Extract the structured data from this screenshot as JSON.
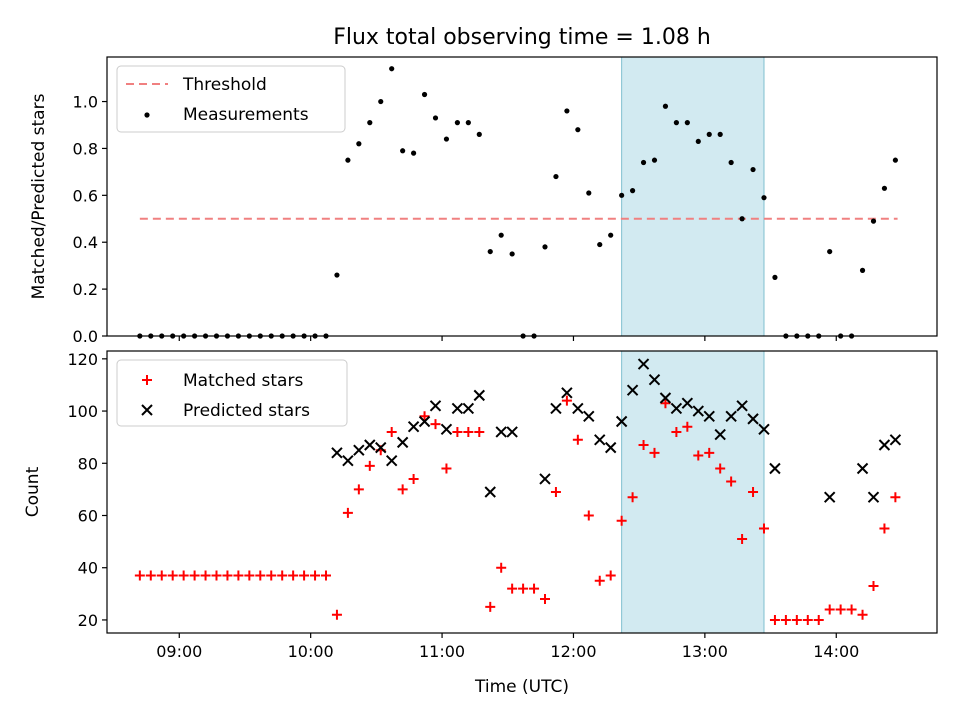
{
  "title": "Flux total observing time = 1.08 h",
  "colors": {
    "threshold": "#f08080",
    "measurements": "#000000",
    "matched": "#ff0000",
    "predicted": "#000000",
    "span_fill": "#add8e6"
  },
  "chart_data": [
    {
      "type": "scatter",
      "ylabel": "Matched/Predicted stars",
      "ylim": [
        0,
        1.19
      ],
      "yticks": [
        0.0,
        0.2,
        0.4,
        0.6,
        0.8,
        1.0
      ],
      "ytick_labels": [
        "0.0",
        "0.2",
        "0.4",
        "0.6",
        "0.8",
        "1.0"
      ],
      "legend_position": "upper-left",
      "legend": [
        "Threshold",
        "Measurements"
      ],
      "highlight_span": {
        "x": [
          "12:22",
          "13:27"
        ]
      },
      "threshold": {
        "name": "Threshold",
        "y": 0.5,
        "x": [
          "08:42",
          "14:28"
        ],
        "style": "dashed"
      },
      "series": [
        {
          "name": "Measurements",
          "marker": "dot",
          "points": [
            [
              "08:42",
              0.0
            ],
            [
              "08:47",
              0.0
            ],
            [
              "08:52",
              0.0
            ],
            [
              "08:57",
              0.0
            ],
            [
              "09:02",
              0.0
            ],
            [
              "09:07",
              0.0
            ],
            [
              "09:12",
              0.0
            ],
            [
              "09:17",
              0.0
            ],
            [
              "09:22",
              0.0
            ],
            [
              "09:27",
              0.0
            ],
            [
              "09:32",
              0.0
            ],
            [
              "09:37",
              0.0
            ],
            [
              "09:42",
              0.0
            ],
            [
              "09:47",
              0.0
            ],
            [
              "09:52",
              0.0
            ],
            [
              "09:57",
              0.0
            ],
            [
              "10:02",
              0.0
            ],
            [
              "10:07",
              0.0
            ],
            [
              "10:12",
              0.26
            ],
            [
              "10:17",
              0.75
            ],
            [
              "10:22",
              0.82
            ],
            [
              "10:27",
              0.91
            ],
            [
              "10:32",
              1.0
            ],
            [
              "10:37",
              1.14
            ],
            [
              "10:42",
              0.79
            ],
            [
              "10:47",
              0.78
            ],
            [
              "10:52",
              1.03
            ],
            [
              "10:57",
              0.93
            ],
            [
              "11:02",
              0.84
            ],
            [
              "11:07",
              0.91
            ],
            [
              "11:12",
              0.91
            ],
            [
              "11:17",
              0.86
            ],
            [
              "11:22",
              0.36
            ],
            [
              "11:27",
              0.43
            ],
            [
              "11:32",
              0.35
            ],
            [
              "11:37",
              0.0
            ],
            [
              "11:42",
              0.0
            ],
            [
              "11:47",
              0.38
            ],
            [
              "11:52",
              0.68
            ],
            [
              "11:57",
              0.96
            ],
            [
              "12:02",
              0.88
            ],
            [
              "12:07",
              0.61
            ],
            [
              "12:12",
              0.39
            ],
            [
              "12:17",
              0.43
            ],
            [
              "12:22",
              0.6
            ],
            [
              "12:27",
              0.62
            ],
            [
              "12:32",
              0.74
            ],
            [
              "12:37",
              0.75
            ],
            [
              "12:42",
              0.98
            ],
            [
              "12:47",
              0.91
            ],
            [
              "12:52",
              0.91
            ],
            [
              "12:57",
              0.83
            ],
            [
              "13:02",
              0.86
            ],
            [
              "13:07",
              0.86
            ],
            [
              "13:12",
              0.74
            ],
            [
              "13:17",
              0.5
            ],
            [
              "13:22",
              0.71
            ],
            [
              "13:27",
              0.59
            ],
            [
              "13:32",
              0.25
            ],
            [
              "13:37",
              0.0
            ],
            [
              "13:42",
              0.0
            ],
            [
              "13:47",
              0.0
            ],
            [
              "13:52",
              0.0
            ],
            [
              "13:57",
              0.36
            ],
            [
              "14:02",
              0.0
            ],
            [
              "14:07",
              0.0
            ],
            [
              "14:12",
              0.28
            ],
            [
              "14:17",
              0.49
            ],
            [
              "14:22",
              0.63
            ],
            [
              "14:27",
              0.75
            ]
          ]
        }
      ]
    },
    {
      "type": "scatter",
      "xlabel": "Time (UTC)",
      "ylabel": "Count",
      "xlim": [
        "08:27",
        "14:46"
      ],
      "xticks": [
        "09:00",
        "10:00",
        "11:00",
        "12:00",
        "13:00",
        "14:00"
      ],
      "ylim": [
        15,
        123
      ],
      "yticks": [
        20,
        40,
        60,
        80,
        100,
        120
      ],
      "legend_position": "upper-left",
      "legend": [
        "Matched stars",
        "Predicted stars"
      ],
      "highlight_span": {
        "x": [
          "12:22",
          "13:27"
        ]
      },
      "series": [
        {
          "name": "Matched stars",
          "marker": "plus",
          "points": [
            [
              "08:42",
              37
            ],
            [
              "08:47",
              37
            ],
            [
              "08:52",
              37
            ],
            [
              "08:57",
              37
            ],
            [
              "09:02",
              37
            ],
            [
              "09:07",
              37
            ],
            [
              "09:12",
              37
            ],
            [
              "09:17",
              37
            ],
            [
              "09:22",
              37
            ],
            [
              "09:27",
              37
            ],
            [
              "09:32",
              37
            ],
            [
              "09:37",
              37
            ],
            [
              "09:42",
              37
            ],
            [
              "09:47",
              37
            ],
            [
              "09:52",
              37
            ],
            [
              "09:57",
              37
            ],
            [
              "10:02",
              37
            ],
            [
              "10:07",
              37
            ],
            [
              "10:12",
              22
            ],
            [
              "10:17",
              61
            ],
            [
              "10:22",
              70
            ],
            [
              "10:27",
              79
            ],
            [
              "10:32",
              85
            ],
            [
              "10:37",
              92
            ],
            [
              "10:42",
              70
            ],
            [
              "10:47",
              74
            ],
            [
              "10:52",
              98
            ],
            [
              "10:57",
              95
            ],
            [
              "11:02",
              78
            ],
            [
              "11:07",
              92
            ],
            [
              "11:12",
              92
            ],
            [
              "11:17",
              92
            ],
            [
              "11:22",
              25
            ],
            [
              "11:27",
              40
            ],
            [
              "11:32",
              32
            ],
            [
              "11:37",
              32
            ],
            [
              "11:42",
              32
            ],
            [
              "11:47",
              28
            ],
            [
              "11:52",
              69
            ],
            [
              "11:57",
              104
            ],
            [
              "12:02",
              89
            ],
            [
              "12:07",
              60
            ],
            [
              "12:12",
              35
            ],
            [
              "12:17",
              37
            ],
            [
              "12:22",
              58
            ],
            [
              "12:27",
              67
            ],
            [
              "12:32",
              87
            ],
            [
              "12:37",
              84
            ],
            [
              "12:42",
              103
            ],
            [
              "12:47",
              92
            ],
            [
              "12:52",
              94
            ],
            [
              "12:57",
              83
            ],
            [
              "13:02",
              84
            ],
            [
              "13:07",
              78
            ],
            [
              "13:12",
              73
            ],
            [
              "13:17",
              51
            ],
            [
              "13:22",
              69
            ],
            [
              "13:27",
              55
            ],
            [
              "13:32",
              20
            ],
            [
              "13:37",
              20
            ],
            [
              "13:42",
              20
            ],
            [
              "13:47",
              20
            ],
            [
              "13:52",
              20
            ],
            [
              "13:57",
              24
            ],
            [
              "14:02",
              24
            ],
            [
              "14:07",
              24
            ],
            [
              "14:12",
              22
            ],
            [
              "14:17",
              33
            ],
            [
              "14:22",
              55
            ],
            [
              "14:27",
              67
            ]
          ]
        },
        {
          "name": "Predicted stars",
          "marker": "x",
          "points": [
            [
              "10:12",
              84
            ],
            [
              "10:17",
              81
            ],
            [
              "10:22",
              85
            ],
            [
              "10:27",
              87
            ],
            [
              "10:32",
              86
            ],
            [
              "10:37",
              81
            ],
            [
              "10:42",
              88
            ],
            [
              "10:47",
              94
            ],
            [
              "10:52",
              96
            ],
            [
              "10:57",
              102
            ],
            [
              "11:02",
              93
            ],
            [
              "11:07",
              101
            ],
            [
              "11:12",
              101
            ],
            [
              "11:17",
              106
            ],
            [
              "11:22",
              69
            ],
            [
              "11:27",
              92
            ],
            [
              "11:32",
              92
            ],
            [
              "11:47",
              74
            ],
            [
              "11:52",
              101
            ],
            [
              "11:57",
              107
            ],
            [
              "12:02",
              101
            ],
            [
              "12:07",
              98
            ],
            [
              "12:12",
              89
            ],
            [
              "12:17",
              86
            ],
            [
              "12:22",
              96
            ],
            [
              "12:27",
              108
            ],
            [
              "12:32",
              118
            ],
            [
              "12:37",
              112
            ],
            [
              "12:42",
              105
            ],
            [
              "12:47",
              101
            ],
            [
              "12:52",
              103
            ],
            [
              "12:57",
              100
            ],
            [
              "13:02",
              98
            ],
            [
              "13:07",
              91
            ],
            [
              "13:12",
              98
            ],
            [
              "13:17",
              102
            ],
            [
              "13:22",
              97
            ],
            [
              "13:27",
              93
            ],
            [
              "13:32",
              78
            ],
            [
              "13:57",
              67
            ],
            [
              "14:12",
              78
            ],
            [
              "14:17",
              67
            ],
            [
              "14:22",
              87
            ],
            [
              "14:27",
              89
            ]
          ]
        }
      ]
    }
  ]
}
